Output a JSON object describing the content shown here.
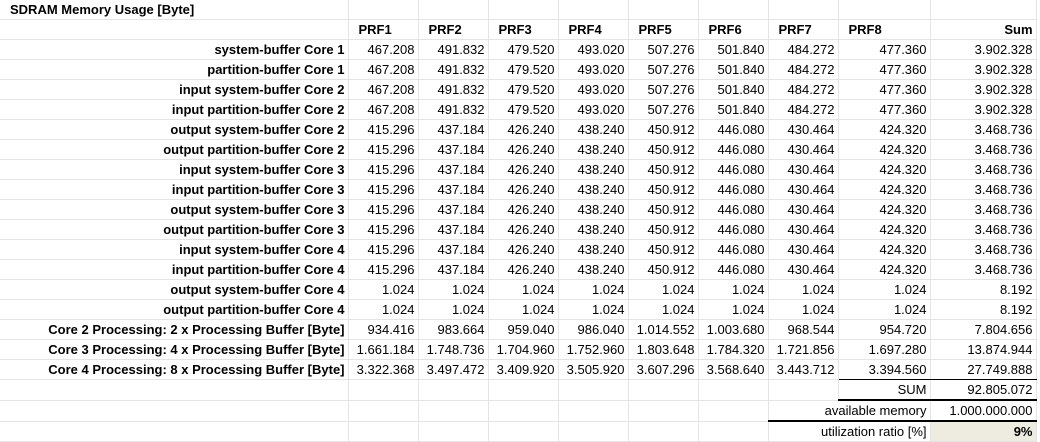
{
  "title": "SDRAM Memory Usage [Byte]",
  "headers": [
    "PRF1",
    "PRF2",
    "PRF3",
    "PRF4",
    "PRF5",
    "PRF6",
    "PRF7",
    "PRF8",
    "Sum"
  ],
  "rows": [
    {
      "label": "system-buffer Core 1",
      "values": [
        "467.208",
        "491.832",
        "479.520",
        "493.020",
        "507.276",
        "501.840",
        "484.272",
        "477.360",
        "3.902.328"
      ]
    },
    {
      "label": "partition-buffer Core 1",
      "values": [
        "467.208",
        "491.832",
        "479.520",
        "493.020",
        "507.276",
        "501.840",
        "484.272",
        "477.360",
        "3.902.328"
      ]
    },
    {
      "label": "input system-buffer Core 2",
      "values": [
        "467.208",
        "491.832",
        "479.520",
        "493.020",
        "507.276",
        "501.840",
        "484.272",
        "477.360",
        "3.902.328"
      ]
    },
    {
      "label": "input partition-buffer Core 2",
      "values": [
        "467.208",
        "491.832",
        "479.520",
        "493.020",
        "507.276",
        "501.840",
        "484.272",
        "477.360",
        "3.902.328"
      ]
    },
    {
      "label": "output system-buffer Core 2",
      "values": [
        "415.296",
        "437.184",
        "426.240",
        "438.240",
        "450.912",
        "446.080",
        "430.464",
        "424.320",
        "3.468.736"
      ]
    },
    {
      "label": "output partition-buffer Core 2",
      "values": [
        "415.296",
        "437.184",
        "426.240",
        "438.240",
        "450.912",
        "446.080",
        "430.464",
        "424.320",
        "3.468.736"
      ]
    },
    {
      "label": "input system-buffer Core 3",
      "values": [
        "415.296",
        "437.184",
        "426.240",
        "438.240",
        "450.912",
        "446.080",
        "430.464",
        "424.320",
        "3.468.736"
      ]
    },
    {
      "label": "input partition-buffer Core 3",
      "values": [
        "415.296",
        "437.184",
        "426.240",
        "438.240",
        "450.912",
        "446.080",
        "430.464",
        "424.320",
        "3.468.736"
      ]
    },
    {
      "label": "output system-buffer Core 3",
      "values": [
        "415.296",
        "437.184",
        "426.240",
        "438.240",
        "450.912",
        "446.080",
        "430.464",
        "424.320",
        "3.468.736"
      ]
    },
    {
      "label": "output partition-buffer Core 3",
      "values": [
        "415.296",
        "437.184",
        "426.240",
        "438.240",
        "450.912",
        "446.080",
        "430.464",
        "424.320",
        "3.468.736"
      ]
    },
    {
      "label": "input system-buffer Core 4",
      "values": [
        "415.296",
        "437.184",
        "426.240",
        "438.240",
        "450.912",
        "446.080",
        "430.464",
        "424.320",
        "3.468.736"
      ]
    },
    {
      "label": "input partition-buffer Core 4",
      "values": [
        "415.296",
        "437.184",
        "426.240",
        "438.240",
        "450.912",
        "446.080",
        "430.464",
        "424.320",
        "3.468.736"
      ]
    },
    {
      "label": "output system-buffer Core 4",
      "values": [
        "1.024",
        "1.024",
        "1.024",
        "1.024",
        "1.024",
        "1.024",
        "1.024",
        "1.024",
        "8.192"
      ]
    },
    {
      "label": "output partition-buffer Core 4",
      "values": [
        "1.024",
        "1.024",
        "1.024",
        "1.024",
        "1.024",
        "1.024",
        "1.024",
        "1.024",
        "8.192"
      ]
    },
    {
      "label": "Core 2 Processing: 2 x Processing Buffer [Byte]",
      "values": [
        "934.416",
        "983.664",
        "959.040",
        "986.040",
        "1.014.552",
        "1.003.680",
        "968.544",
        "954.720",
        "7.804.656"
      ]
    },
    {
      "label": "Core 3 Processing: 4 x Processing Buffer [Byte]",
      "values": [
        "1.661.184",
        "1.748.736",
        "1.704.960",
        "1.752.960",
        "1.803.648",
        "1.784.320",
        "1.721.856",
        "1.697.280",
        "13.874.944"
      ]
    },
    {
      "label": "Core 4 Processing: 8 x Processing Buffer [Byte]",
      "values": [
        "3.322.368",
        "3.497.472",
        "3.409.920",
        "3.505.920",
        "3.607.296",
        "3.568.640",
        "3.443.712",
        "3.394.560",
        "27.749.888"
      ]
    }
  ],
  "summary": {
    "sum_label": "SUM",
    "sum_value": "92.805.072",
    "available_label": "available memory",
    "available_value": "1.000.000.000",
    "ratio_label": "utilization ratio [%]",
    "ratio_value": "9%"
  }
}
